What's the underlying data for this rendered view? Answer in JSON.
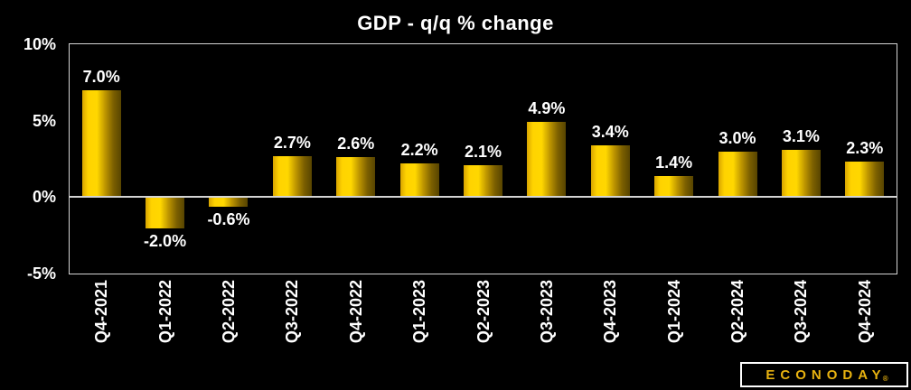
{
  "title": "GDP - q/q % change",
  "logo": {
    "text": "ECONODAY",
    "reg": "®"
  },
  "colors": {
    "background": "#000000",
    "text": "#ffffff",
    "axis_frame": "#d4d4d4",
    "bar_bright": "#ffd700",
    "bar_dark": "#574400",
    "logo_gold": "#e8b210"
  },
  "chart_data": {
    "type": "bar",
    "title": "GDP - q/q % change",
    "categories": [
      "Q4-2021",
      "Q1-2022",
      "Q2-2022",
      "Q3-2022",
      "Q4-2022",
      "Q1-2023",
      "Q2-2023",
      "Q3-2023",
      "Q4-2023",
      "Q1-2024",
      "Q2-2024",
      "Q3-2024",
      "Q4-2024"
    ],
    "values": [
      7.0,
      -2.0,
      -0.6,
      2.7,
      2.6,
      2.2,
      2.1,
      4.9,
      3.4,
      1.4,
      3.0,
      3.1,
      2.3
    ],
    "labels": [
      "7.0%",
      "-2.0%",
      "-0.6%",
      "2.7%",
      "2.6%",
      "2.2%",
      "2.1%",
      "4.9%",
      "3.4%",
      "1.4%",
      "3.0%",
      "3.1%",
      "2.3%"
    ],
    "xlabel": "",
    "ylabel": "",
    "ylim": [
      -5,
      10
    ],
    "yticks": [
      {
        "value": 10,
        "label": "10%"
      },
      {
        "value": 5,
        "label": "5%"
      },
      {
        "value": 0,
        "label": "0%"
      },
      {
        "value": -5,
        "label": "-5%"
      }
    ],
    "grid": "zero-line-only",
    "legend": "none",
    "bar_color": "gold-gradient"
  }
}
